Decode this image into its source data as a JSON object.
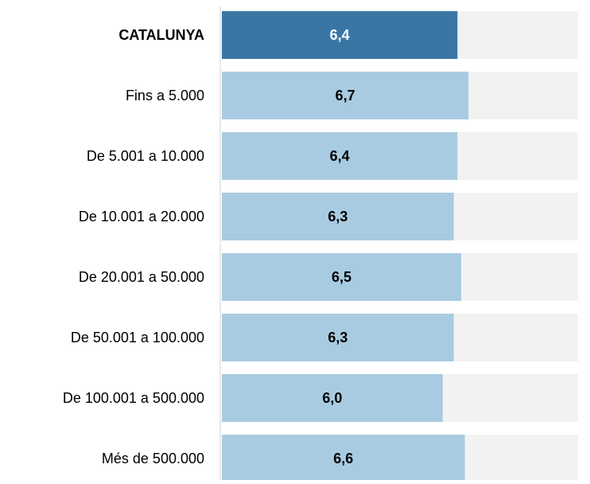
{
  "chart_data": {
    "type": "barh",
    "categories": [
      "CATALUNYA",
      "Fins a 5.000",
      "De 5.001 a 10.000",
      "De 10.001 a 20.000",
      "De 20.001 a 50.000",
      "De 50.001 a 100.000",
      "De 100.001 a 500.000",
      "Més de 500.000"
    ],
    "values": [
      6.4,
      6.7,
      6.4,
      6.3,
      6.5,
      6.3,
      6.0,
      6.6
    ],
    "value_labels": [
      "6,4",
      "6,7",
      "6,4",
      "6,3",
      "6,5",
      "6,3",
      "6,0",
      "6,6"
    ],
    "colors": [
      "#3a76a4",
      "#a9cbe2",
      "#a9cbe2",
      "#a9cbe2",
      "#a9cbe2",
      "#a9cbe2",
      "#a9cbe2",
      "#a9cbe2"
    ],
    "xlim": [
      0,
      10
    ]
  }
}
